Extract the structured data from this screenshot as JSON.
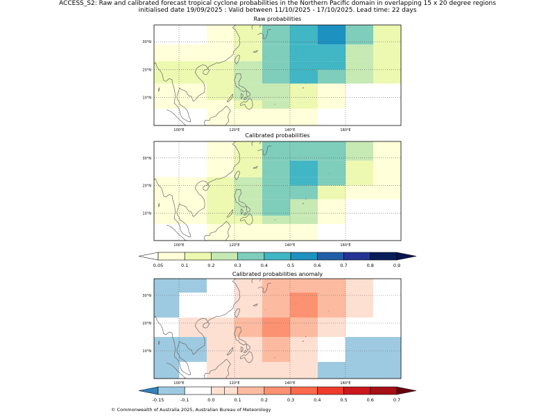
{
  "figure": {
    "title_line1": "ACCESS_S2: Raw and calibrated forecast tropical cyclone probabilities in the Northern Pacific domain in overlapping 15 x 20 degree regions",
    "title_line2": "initialised date 19/09/2025 :  Valid between 11/10/2025 - 17/10/2025. Lead time: 22 days",
    "footer": "© Commonwealth of Australia 2025, Australian Bureau of Meteorology"
  },
  "chart_data": [
    {
      "type": "heatmap",
      "title": "Raw probabilities",
      "xlim": [
        91,
        180
      ],
      "ylim": [
        0,
        36
      ],
      "xticks": [
        100,
        120,
        140,
        160
      ],
      "xtick_labels": [
        "100°E",
        "120°E",
        "140°E",
        "160°E"
      ],
      "yticks": [
        10,
        20,
        30
      ],
      "ytick_labels": [
        "10°N",
        "20°N",
        "30°N"
      ],
      "cells": [
        {
          "x0": 91,
          "x1": 110,
          "y0": 36,
          "y1": 29,
          "v": 0
        },
        {
          "x0": 110,
          "x1": 120,
          "y0": 36,
          "y1": 29,
          "v": 0.08
        },
        {
          "x0": 120,
          "x1": 130,
          "y0": 36,
          "y1": 29,
          "v": 0.15
        },
        {
          "x0": 130,
          "x1": 140,
          "y0": 36,
          "y1": 29,
          "v": 0.35
        },
        {
          "x0": 140,
          "x1": 150,
          "y0": 36,
          "y1": 29,
          "v": 0.45
        },
        {
          "x0": 150,
          "x1": 160,
          "y0": 36,
          "y1": 29,
          "v": 0.55
        },
        {
          "x0": 160,
          "x1": 170,
          "y0": 36,
          "y1": 29,
          "v": 0.35
        },
        {
          "x0": 170,
          "x1": 180,
          "y0": 36,
          "y1": 29,
          "v": 0.15
        },
        {
          "x0": 91,
          "x1": 110,
          "y0": 29,
          "y1": 23,
          "v": 0.08
        },
        {
          "x0": 110,
          "x1": 120,
          "y0": 29,
          "y1": 23,
          "v": 0.08
        },
        {
          "x0": 120,
          "x1": 130,
          "y0": 29,
          "y1": 23,
          "v": 0.15
        },
        {
          "x0": 130,
          "x1": 140,
          "y0": 29,
          "y1": 23,
          "v": 0.35
        },
        {
          "x0": 140,
          "x1": 160,
          "y0": 29,
          "y1": 23,
          "v": 0.45
        },
        {
          "x0": 160,
          "x1": 170,
          "y0": 29,
          "y1": 23,
          "v": 0.25
        },
        {
          "x0": 170,
          "x1": 180,
          "y0": 29,
          "y1": 23,
          "v": 0.15
        },
        {
          "x0": 91,
          "x1": 110,
          "y0": 23,
          "y1": 20,
          "v": 0.15
        },
        {
          "x0": 110,
          "x1": 120,
          "y0": 23,
          "y1": 20,
          "v": 0.15
        },
        {
          "x0": 120,
          "x1": 130,
          "y0": 23,
          "y1": 20,
          "v": 0.25
        },
        {
          "x0": 130,
          "x1": 140,
          "y0": 23,
          "y1": 20,
          "v": 0.35
        },
        {
          "x0": 140,
          "x1": 160,
          "y0": 23,
          "y1": 20,
          "v": 0.45
        },
        {
          "x0": 160,
          "x1": 170,
          "y0": 23,
          "y1": 20,
          "v": 0.25
        },
        {
          "x0": 170,
          "x1": 180,
          "y0": 23,
          "y1": 20,
          "v": 0.15
        },
        {
          "x0": 91,
          "x1": 110,
          "y0": 20,
          "y1": 15,
          "v": 0.15
        },
        {
          "x0": 110,
          "x1": 120,
          "y0": 20,
          "y1": 15,
          "v": 0.15
        },
        {
          "x0": 120,
          "x1": 130,
          "y0": 20,
          "y1": 15,
          "v": 0.25
        },
        {
          "x0": 130,
          "x1": 140,
          "y0": 20,
          "y1": 15,
          "v": 0.35
        },
        {
          "x0": 140,
          "x1": 150,
          "y0": 20,
          "y1": 15,
          "v": 0.45
        },
        {
          "x0": 150,
          "x1": 160,
          "y0": 20,
          "y1": 15,
          "v": 0.35
        },
        {
          "x0": 160,
          "x1": 170,
          "y0": 20,
          "y1": 15,
          "v": 0.25
        },
        {
          "x0": 170,
          "x1": 180,
          "y0": 20,
          "y1": 15,
          "v": 0.15
        },
        {
          "x0": 91,
          "x1": 110,
          "y0": 15,
          "y1": 9,
          "v": 0.08
        },
        {
          "x0": 110,
          "x1": 120,
          "y0": 15,
          "y1": 9,
          "v": 0.15
        },
        {
          "x0": 120,
          "x1": 130,
          "y0": 15,
          "y1": 9,
          "v": 0.25
        },
        {
          "x0": 130,
          "x1": 140,
          "y0": 15,
          "y1": 9,
          "v": 0.25
        },
        {
          "x0": 140,
          "x1": 150,
          "y0": 15,
          "y1": 9,
          "v": 0.15
        },
        {
          "x0": 150,
          "x1": 160,
          "y0": 15,
          "y1": 9,
          "v": 0.08
        },
        {
          "x0": 160,
          "x1": 180,
          "y0": 15,
          "y1": 9,
          "v": 0
        },
        {
          "x0": 91,
          "x1": 110,
          "y0": 9,
          "y1": 6,
          "v": 0.08
        },
        {
          "x0": 110,
          "x1": 120,
          "y0": 9,
          "y1": 6,
          "v": 0.08
        },
        {
          "x0": 120,
          "x1": 130,
          "y0": 9,
          "y1": 6,
          "v": 0.15
        },
        {
          "x0": 130,
          "x1": 140,
          "y0": 9,
          "y1": 6,
          "v": 0.25
        },
        {
          "x0": 140,
          "x1": 150,
          "y0": 9,
          "y1": 6,
          "v": 0.15
        },
        {
          "x0": 150,
          "x1": 160,
          "y0": 9,
          "y1": 6,
          "v": 0.08
        },
        {
          "x0": 160,
          "x1": 180,
          "y0": 9,
          "y1": 6,
          "v": 0
        },
        {
          "x0": 91,
          "x1": 110,
          "y0": 6,
          "y1": 0,
          "v": 0
        },
        {
          "x0": 110,
          "x1": 130,
          "y0": 6,
          "y1": 0,
          "v": 0.08
        },
        {
          "x0": 130,
          "x1": 140,
          "y0": 6,
          "y1": 0,
          "v": 0.08
        },
        {
          "x0": 140,
          "x1": 150,
          "y0": 6,
          "y1": 0,
          "v": 0.08
        },
        {
          "x0": 150,
          "x1": 180,
          "y0": 6,
          "y1": 0,
          "v": 0
        }
      ]
    },
    {
      "type": "heatmap",
      "title": "Calibrated probabilities",
      "xlim": [
        91,
        180
      ],
      "ylim": [
        0,
        36
      ],
      "xticks": [
        100,
        120,
        140,
        160
      ],
      "xtick_labels": [
        "100°E",
        "120°E",
        "140°E",
        "160°E"
      ],
      "yticks": [
        10,
        20,
        30
      ],
      "ytick_labels": [
        "10°N",
        "20°N",
        "30°N"
      ],
      "cells": [
        {
          "x0": 91,
          "x1": 110,
          "y0": 36,
          "y1": 29,
          "v": 0
        },
        {
          "x0": 110,
          "x1": 120,
          "y0": 36,
          "y1": 29,
          "v": 0.08
        },
        {
          "x0": 120,
          "x1": 130,
          "y0": 36,
          "y1": 29,
          "v": 0.15
        },
        {
          "x0": 130,
          "x1": 160,
          "y0": 36,
          "y1": 29,
          "v": 0.35
        },
        {
          "x0": 160,
          "x1": 170,
          "y0": 36,
          "y1": 29,
          "v": 0.25
        },
        {
          "x0": 170,
          "x1": 180,
          "y0": 36,
          "y1": 29,
          "v": 0.08
        },
        {
          "x0": 91,
          "x1": 110,
          "y0": 29,
          "y1": 23,
          "v": 0
        },
        {
          "x0": 110,
          "x1": 120,
          "y0": 29,
          "y1": 23,
          "v": 0.08
        },
        {
          "x0": 120,
          "x1": 130,
          "y0": 29,
          "y1": 23,
          "v": 0.15
        },
        {
          "x0": 130,
          "x1": 140,
          "y0": 29,
          "y1": 23,
          "v": 0.35
        },
        {
          "x0": 140,
          "x1": 150,
          "y0": 29,
          "y1": 23,
          "v": 0.45
        },
        {
          "x0": 150,
          "x1": 160,
          "y0": 29,
          "y1": 23,
          "v": 0.35
        },
        {
          "x0": 160,
          "x1": 170,
          "y0": 29,
          "y1": 23,
          "v": 0.15
        },
        {
          "x0": 170,
          "x1": 180,
          "y0": 29,
          "y1": 23,
          "v": 0.08
        },
        {
          "x0": 91,
          "x1": 110,
          "y0": 23,
          "y1": 20,
          "v": 0.08
        },
        {
          "x0": 110,
          "x1": 120,
          "y0": 23,
          "y1": 20,
          "v": 0.15
        },
        {
          "x0": 120,
          "x1": 130,
          "y0": 23,
          "y1": 20,
          "v": 0.25
        },
        {
          "x0": 130,
          "x1": 140,
          "y0": 23,
          "y1": 20,
          "v": 0.35
        },
        {
          "x0": 140,
          "x1": 150,
          "y0": 23,
          "y1": 20,
          "v": 0.45
        },
        {
          "x0": 150,
          "x1": 160,
          "y0": 23,
          "y1": 20,
          "v": 0.35
        },
        {
          "x0": 160,
          "x1": 170,
          "y0": 23,
          "y1": 20,
          "v": 0.15
        },
        {
          "x0": 170,
          "x1": 180,
          "y0": 23,
          "y1": 20,
          "v": 0.08
        },
        {
          "x0": 91,
          "x1": 110,
          "y0": 20,
          "y1": 15,
          "v": 0.08
        },
        {
          "x0": 110,
          "x1": 120,
          "y0": 20,
          "y1": 15,
          "v": 0.15
        },
        {
          "x0": 120,
          "x1": 130,
          "y0": 20,
          "y1": 15,
          "v": 0.25
        },
        {
          "x0": 130,
          "x1": 140,
          "y0": 20,
          "y1": 15,
          "v": 0.35
        },
        {
          "x0": 140,
          "x1": 150,
          "y0": 20,
          "y1": 15,
          "v": 0.35
        },
        {
          "x0": 150,
          "x1": 160,
          "y0": 20,
          "y1": 15,
          "v": 0.15
        },
        {
          "x0": 160,
          "x1": 170,
          "y0": 20,
          "y1": 15,
          "v": 0.08
        },
        {
          "x0": 170,
          "x1": 180,
          "y0": 20,
          "y1": 15,
          "v": 0.08
        },
        {
          "x0": 91,
          "x1": 110,
          "y0": 15,
          "y1": 9,
          "v": 0.08
        },
        {
          "x0": 110,
          "x1": 120,
          "y0": 15,
          "y1": 9,
          "v": 0.15
        },
        {
          "x0": 120,
          "x1": 130,
          "y0": 15,
          "y1": 9,
          "v": 0.25
        },
        {
          "x0": 130,
          "x1": 140,
          "y0": 15,
          "y1": 9,
          "v": 0.35
        },
        {
          "x0": 140,
          "x1": 150,
          "y0": 15,
          "y1": 9,
          "v": 0.25
        },
        {
          "x0": 150,
          "x1": 160,
          "y0": 15,
          "y1": 9,
          "v": 0.08
        },
        {
          "x0": 160,
          "x1": 180,
          "y0": 15,
          "y1": 9,
          "v": 0
        },
        {
          "x0": 91,
          "x1": 110,
          "y0": 9,
          "y1": 6,
          "v": 0.08
        },
        {
          "x0": 110,
          "x1": 120,
          "y0": 9,
          "y1": 6,
          "v": 0.15
        },
        {
          "x0": 120,
          "x1": 130,
          "y0": 9,
          "y1": 6,
          "v": 0.15
        },
        {
          "x0": 130,
          "x1": 140,
          "y0": 9,
          "y1": 6,
          "v": 0.25
        },
        {
          "x0": 140,
          "x1": 150,
          "y0": 9,
          "y1": 6,
          "v": 0.25
        },
        {
          "x0": 150,
          "x1": 160,
          "y0": 9,
          "y1": 6,
          "v": 0.08
        },
        {
          "x0": 160,
          "x1": 180,
          "y0": 9,
          "y1": 6,
          "v": 0
        },
        {
          "x0": 91,
          "x1": 110,
          "y0": 6,
          "y1": 0,
          "v": 0
        },
        {
          "x0": 110,
          "x1": 120,
          "y0": 6,
          "y1": 0,
          "v": 0.08
        },
        {
          "x0": 120,
          "x1": 150,
          "y0": 6,
          "y1": 0,
          "v": 0.08
        },
        {
          "x0": 150,
          "x1": 180,
          "y0": 6,
          "y1": 0,
          "v": 0
        }
      ]
    },
    {
      "type": "colorbar",
      "boundaries": [
        0.05,
        0.1,
        0.2,
        0.3,
        0.4,
        0.5,
        0.6,
        0.7,
        0.8,
        0.9
      ],
      "tick_labels": [
        "0.05",
        "0.1",
        "0.2",
        "0.3",
        "0.4",
        "0.5",
        "0.6",
        "0.7",
        "0.8",
        "0.9"
      ],
      "colors": [
        "#ffffd9",
        "#edf8b1",
        "#c7e9b4",
        "#7fcdbb",
        "#41b6c4",
        "#1d91c0",
        "#225ea8",
        "#253494",
        "#081d58"
      ],
      "under_color": "#ffffff",
      "over_color": "#081450"
    },
    {
      "type": "heatmap",
      "title": "Calibrated probabilities anomaly",
      "xlim": [
        91,
        180
      ],
      "ylim": [
        0,
        36
      ],
      "xticks": [
        100,
        120,
        140,
        160
      ],
      "xtick_labels": [
        "100°E",
        "120°E",
        "140°E",
        "160°E"
      ],
      "yticks": [
        10,
        20,
        30
      ],
      "ytick_labels": [
        "10°N",
        "20°N",
        "30°N"
      ],
      "cells": [
        {
          "x0": 91,
          "x1": 110,
          "y0": 36,
          "y1": 31,
          "v": -0.12
        },
        {
          "x0": 110,
          "x1": 120,
          "y0": 36,
          "y1": 31,
          "v": -0.07
        },
        {
          "x0": 120,
          "x1": 130,
          "y0": 36,
          "y1": 31,
          "v": 0.05
        },
        {
          "x0": 130,
          "x1": 150,
          "y0": 36,
          "y1": 31,
          "v": 0.15
        },
        {
          "x0": 150,
          "x1": 160,
          "y0": 36,
          "y1": 31,
          "v": 0.15
        },
        {
          "x0": 160,
          "x1": 170,
          "y0": 36,
          "y1": 31,
          "v": 0.05
        },
        {
          "x0": 170,
          "x1": 180,
          "y0": 36,
          "y1": 31,
          "v": -0.07
        },
        {
          "x0": 91,
          "x1": 100,
          "y0": 31,
          "y1": 22,
          "v": -0.12
        },
        {
          "x0": 100,
          "x1": 120,
          "y0": 31,
          "y1": 22,
          "v": -0.07
        },
        {
          "x0": 120,
          "x1": 130,
          "y0": 31,
          "y1": 22,
          "v": 0.05
        },
        {
          "x0": 130,
          "x1": 140,
          "y0": 31,
          "y1": 22,
          "v": 0.15
        },
        {
          "x0": 140,
          "x1": 150,
          "y0": 31,
          "y1": 22,
          "v": 0.25
        },
        {
          "x0": 150,
          "x1": 160,
          "y0": 31,
          "y1": 22,
          "v": 0.15
        },
        {
          "x0": 160,
          "x1": 170,
          "y0": 31,
          "y1": 22,
          "v": 0
        },
        {
          "x0": 170,
          "x1": 180,
          "y0": 31,
          "y1": 22,
          "v": -0.07
        },
        {
          "x0": 91,
          "x1": 100,
          "y0": 22,
          "y1": 15,
          "v": -0.07
        },
        {
          "x0": 100,
          "x1": 110,
          "y0": 22,
          "y1": 15,
          "v": 0
        },
        {
          "x0": 110,
          "x1": 120,
          "y0": 22,
          "y1": 15,
          "v": 0.05
        },
        {
          "x0": 120,
          "x1": 130,
          "y0": 22,
          "y1": 15,
          "v": 0.15
        },
        {
          "x0": 130,
          "x1": 140,
          "y0": 22,
          "y1": 15,
          "v": 0.25
        },
        {
          "x0": 140,
          "x1": 150,
          "y0": 22,
          "y1": 15,
          "v": 0.15
        },
        {
          "x0": 150,
          "x1": 160,
          "y0": 22,
          "y1": 15,
          "v": 0
        },
        {
          "x0": 160,
          "x1": 180,
          "y0": 22,
          "y1": 15,
          "v": -0.07
        },
        {
          "x0": 91,
          "x1": 110,
          "y0": 15,
          "y1": 6,
          "v": -0.12
        },
        {
          "x0": 110,
          "x1": 120,
          "y0": 15,
          "y1": 6,
          "v": 0
        },
        {
          "x0": 120,
          "x1": 130,
          "y0": 15,
          "y1": 6,
          "v": 0.05
        },
        {
          "x0": 130,
          "x1": 140,
          "y0": 15,
          "y1": 6,
          "v": 0.15
        },
        {
          "x0": 140,
          "x1": 150,
          "y0": 15,
          "y1": 6,
          "v": 0.05
        },
        {
          "x0": 150,
          "x1": 160,
          "y0": 15,
          "y1": 6,
          "v": -0.07
        },
        {
          "x0": 160,
          "x1": 180,
          "y0": 15,
          "y1": 6,
          "v": -0.12
        },
        {
          "x0": 91,
          "x1": 100,
          "y0": 6,
          "y1": 0,
          "v": -0.12
        },
        {
          "x0": 100,
          "x1": 110,
          "y0": 6,
          "y1": 0,
          "v": -0.07
        },
        {
          "x0": 110,
          "x1": 150,
          "y0": 6,
          "y1": 0,
          "v": 0
        },
        {
          "x0": 150,
          "x1": 180,
          "y0": 6,
          "y1": 0,
          "v": -0.12
        }
      ]
    },
    {
      "type": "colorbar",
      "boundaries": [
        -0.15,
        -0.1,
        0.0,
        0.1,
        0.2,
        0.3,
        0.4,
        0.5,
        0.6,
        0.7
      ],
      "tick_labels": [
        "-0.15",
        "-0.1",
        "0.0",
        "0.1",
        "0.2",
        "0.3",
        "0.4",
        "0.5",
        "0.6",
        "0.7"
      ],
      "extra_boundaries": [
        0.05
      ],
      "colors": [
        "#9ecae1",
        "#ffffff",
        "#fee0d2",
        "#fcbba1",
        "#fc9272",
        "#fb6a4a",
        "#ef3b2c",
        "#cb181d",
        "#a50f15"
      ],
      "under_color": "#3182bd",
      "over_color": "#67000d"
    }
  ]
}
